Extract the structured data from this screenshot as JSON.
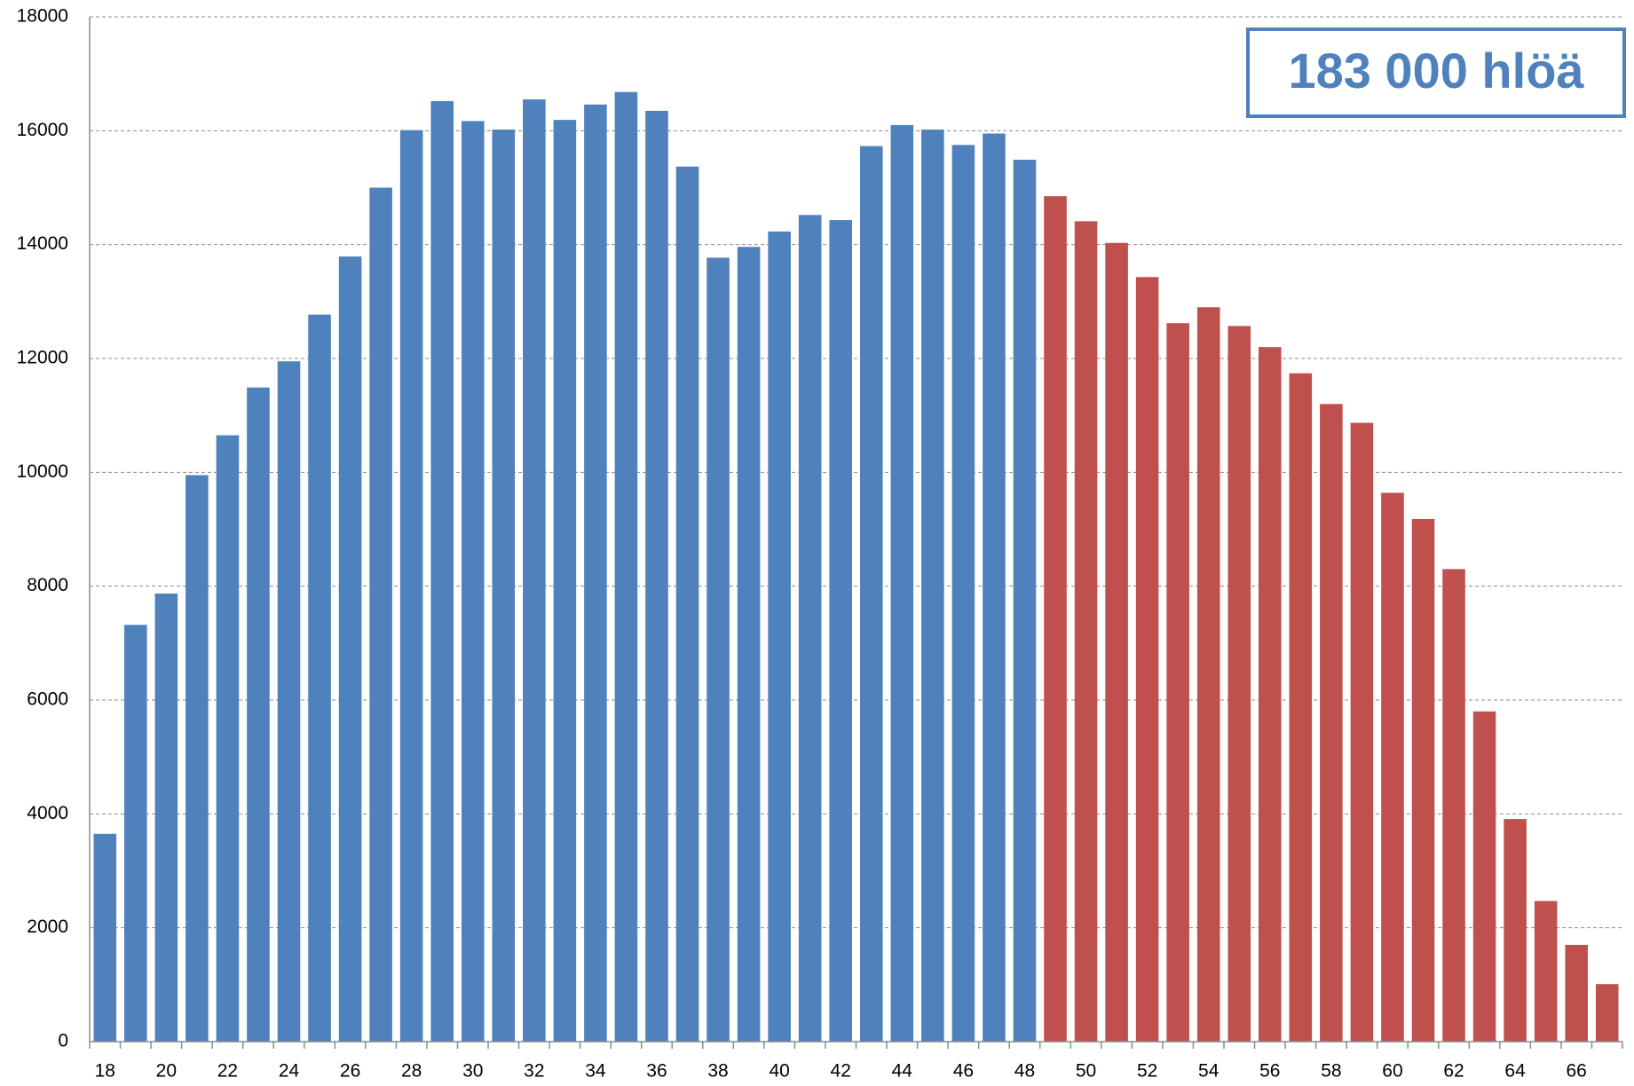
{
  "chart_data": {
    "type": "bar",
    "annotation": "183 000 hlöä",
    "categories": [
      "18",
      null,
      "20",
      null,
      "22",
      null,
      "24",
      null,
      "26",
      null,
      "28",
      null,
      "30",
      null,
      "32",
      null,
      "34",
      null,
      "36",
      null,
      "38",
      null,
      "40",
      null,
      "42",
      null,
      "44",
      null,
      "46",
      null,
      "48",
      null,
      "50",
      null,
      "52",
      null,
      "54",
      null,
      "56",
      null,
      "58",
      null,
      "60",
      null,
      "62",
      null,
      "64",
      null,
      "66",
      null
    ],
    "values": [
      3650,
      7320,
      7870,
      9950,
      10650,
      11490,
      11950,
      12770,
      13790,
      15000,
      16010,
      16520,
      16170,
      16020,
      16550,
      16190,
      16460,
      16680,
      16350,
      15370,
      13770,
      13960,
      14230,
      14520,
      14430,
      15730,
      16100,
      16020,
      15750,
      15950,
      15490,
      14850,
      14410,
      14030,
      13430,
      12620,
      12900,
      12570,
      12200,
      11740,
      11200,
      10870,
      9640,
      9180,
      8300,
      5800,
      3910,
      2470,
      1700,
      1010
    ],
    "colors": [
      "#4f81bd",
      "#4f81bd",
      "#4f81bd",
      "#4f81bd",
      "#4f81bd",
      "#4f81bd",
      "#4f81bd",
      "#4f81bd",
      "#4f81bd",
      "#4f81bd",
      "#4f81bd",
      "#4f81bd",
      "#4f81bd",
      "#4f81bd",
      "#4f81bd",
      "#4f81bd",
      "#4f81bd",
      "#4f81bd",
      "#4f81bd",
      "#4f81bd",
      "#4f81bd",
      "#4f81bd",
      "#4f81bd",
      "#4f81bd",
      "#4f81bd",
      "#4f81bd",
      "#4f81bd",
      "#4f81bd",
      "#4f81bd",
      "#4f81bd",
      "#4f81bd",
      "#c0504d",
      "#c0504d",
      "#c0504d",
      "#c0504d",
      "#c0504d",
      "#c0504d",
      "#c0504d",
      "#c0504d",
      "#c0504d",
      "#c0504d",
      "#c0504d",
      "#c0504d",
      "#c0504d",
      "#c0504d",
      "#c0504d",
      "#c0504d",
      "#c0504d",
      "#c0504d",
      "#c0504d"
    ],
    "ylim": [
      0,
      18000
    ],
    "yticks": [
      0,
      2000,
      4000,
      6000,
      8000,
      10000,
      12000,
      14000,
      16000,
      18000
    ],
    "grid": true
  }
}
